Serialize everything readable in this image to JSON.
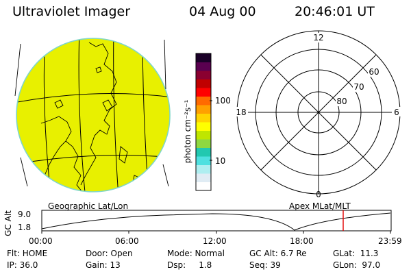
{
  "header": {
    "title": "Ultraviolet Imager",
    "date": "04 Aug 00",
    "time": "20:46:01 UT"
  },
  "colorbar": {
    "unit_label": "photon cm⁻²s⁻¹",
    "ticks": [
      "100",
      "10"
    ],
    "colors": [
      "#ffffff",
      "#e0ecf4",
      "#aeeef0",
      "#4fe0e0",
      "#22c8b0",
      "#8fd840",
      "#bfe600",
      "#ffff00",
      "#ffd400",
      "#ffa000",
      "#ff6a00",
      "#ff0000",
      "#c00000",
      "#8a0030",
      "#5a0050",
      "#1a0028"
    ]
  },
  "globe": {
    "fill_color": "#e8f000",
    "limb_color": "#7fd6c8"
  },
  "polar_plot": {
    "lat_labels": [
      "80",
      "70",
      "60"
    ],
    "mlt_labels": {
      "top": "12",
      "left": "18",
      "right": "6",
      "bottom": "0"
    }
  },
  "timeline": {
    "left_label": "Geographic Lat/Lon",
    "right_label": "Apex MLat/MLT",
    "y_axis_title": "GC Alt",
    "y_ticks": [
      "9.0",
      "1.8"
    ],
    "x_ticks": [
      "00:00",
      "06:00",
      "12:00",
      "18:00",
      "23:59"
    ],
    "marker_color": "#e00000"
  },
  "info": {
    "flt": "Flt: HOME",
    "ip": "IP: 36.0",
    "door": "Door: Open",
    "gain": "Gain: 13",
    "mode": "Mode: Normal",
    "dsp": "Dsp:     1.8",
    "gc_alt": "GC Alt: 6.7 Re",
    "seq": "Seq: 39",
    "glat": "GLat:  11.3",
    "glon": "GLon:  97.0"
  }
}
